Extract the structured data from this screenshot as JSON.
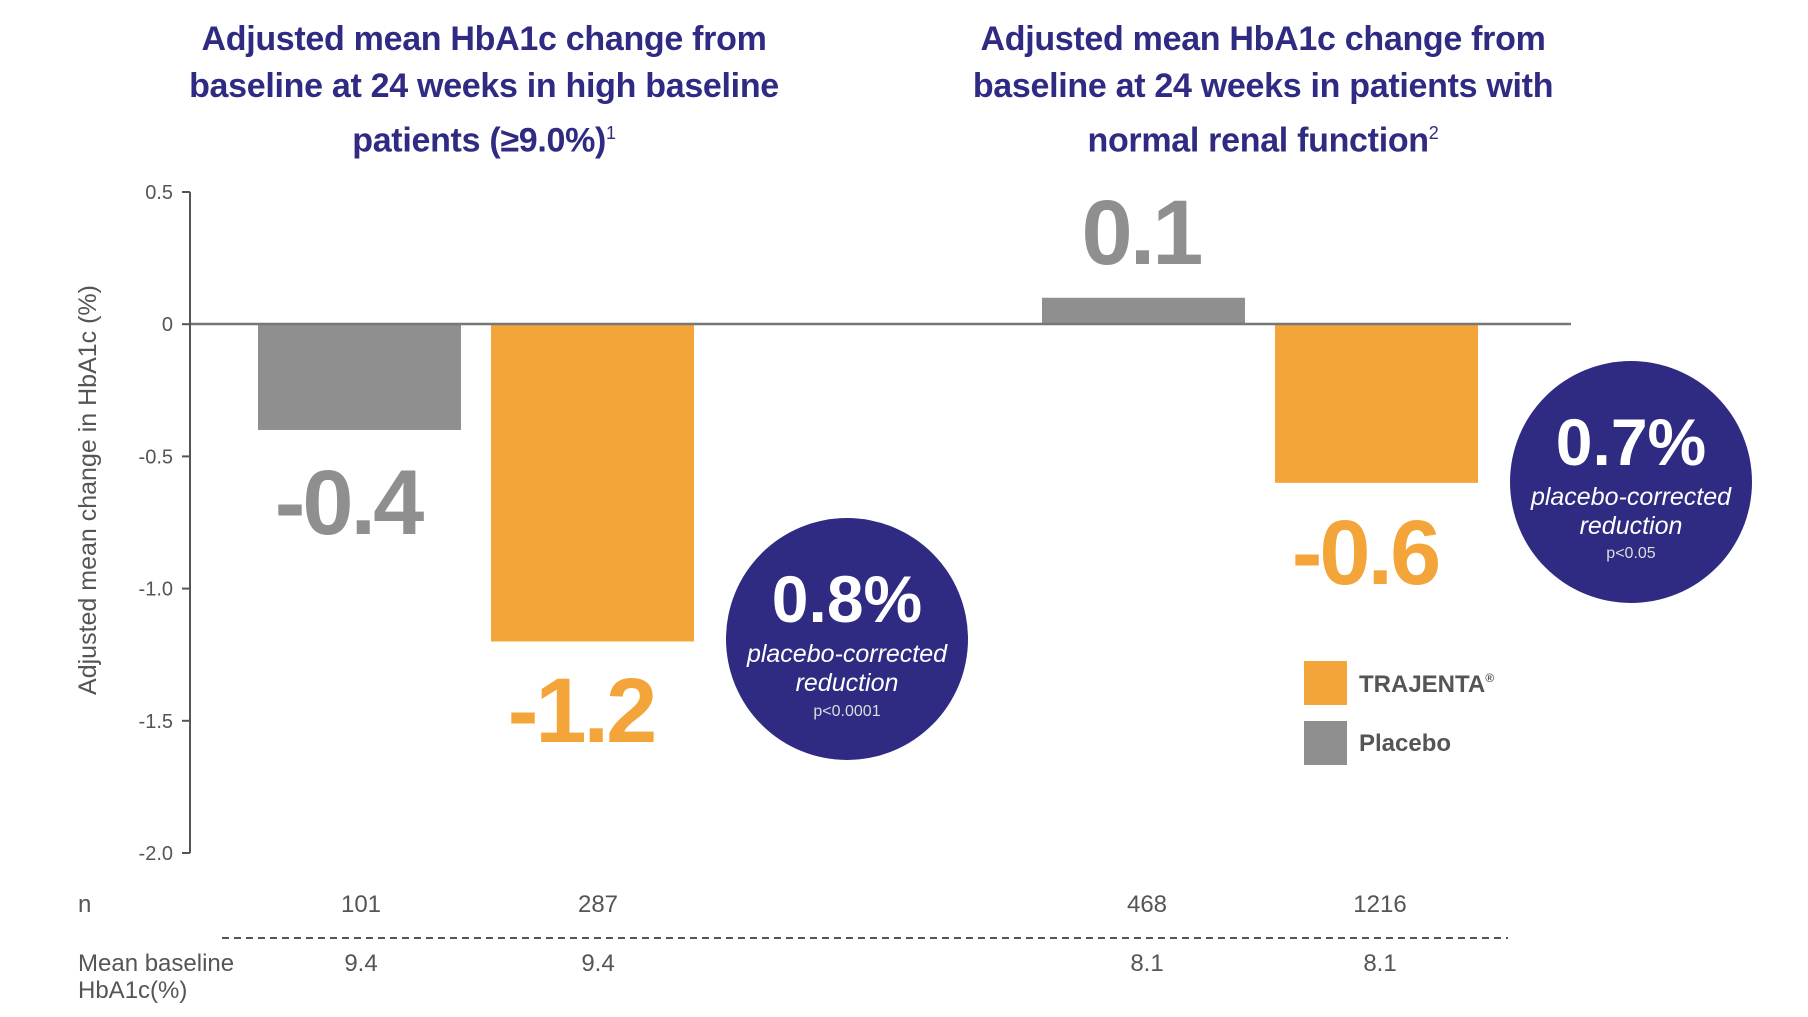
{
  "chart_data": [
    {
      "type": "bar",
      "title": "Adjusted mean HbA1c change from baseline at 24 weeks in high baseline patients (≥9.0%)",
      "title_superscript": "1",
      "ylabel": "Adjusted mean change in HbA1c (%)",
      "ylim": [
        -2.0,
        0.5
      ],
      "yticks": [
        "0.5",
        "0",
        "-0.5",
        "-1.0",
        "-1.5",
        "-2.0"
      ],
      "categories": [
        "Placebo",
        "TRAJENTA®"
      ],
      "values": [
        -0.4,
        -1.2
      ],
      "value_labels": [
        "-0.4",
        "-1.2"
      ],
      "n": [
        "101",
        "287"
      ],
      "mean_baseline": [
        "9.4",
        "9.4"
      ],
      "callout": {
        "value": "0.8%",
        "text_line1": "placebo-corrected",
        "text_line2": "reduction",
        "p": "p<0.0001"
      }
    },
    {
      "type": "bar",
      "title": "Adjusted mean HbA1c change from baseline at 24 weeks in patients with normal renal function",
      "title_superscript": "2",
      "categories": [
        "Placebo",
        "TRAJENTA®"
      ],
      "values": [
        0.1,
        -0.6
      ],
      "value_labels": [
        "0.1",
        "-0.6"
      ],
      "n": [
        "468",
        "1216"
      ],
      "mean_baseline": [
        "8.1",
        "8.1"
      ],
      "callout": {
        "value": "0.7%",
        "text_line1": "placebo-corrected",
        "text_line2": "reduction",
        "p": "p<0.05"
      }
    }
  ],
  "legend": {
    "placement": "right",
    "items": [
      {
        "label": "TRAJENTA",
        "mark": "®",
        "color": "#F4A53A"
      },
      {
        "label": "Placebo",
        "color": "#8F8F8F"
      }
    ]
  },
  "table": {
    "n_label": "n",
    "baseline_label_line1": "Mean baseline",
    "baseline_label_line2": "HbA1c(%)"
  },
  "colors": {
    "trajenta": "#F4A53A",
    "placebo": "#8F8F8F",
    "callout": "#2F2A82",
    "title": "#2F2A82"
  }
}
